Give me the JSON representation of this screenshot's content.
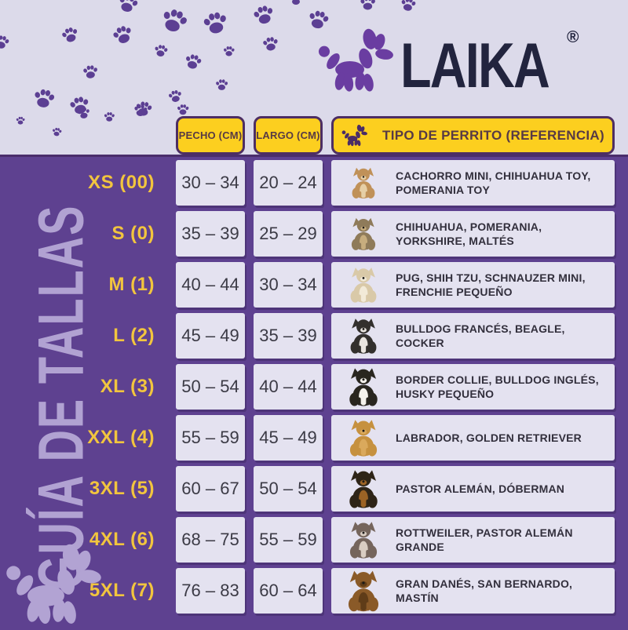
{
  "brand": {
    "name": "LAIKA",
    "registered": "®"
  },
  "sidebar": {
    "title": "GUÍA DE TALLAS"
  },
  "colors": {
    "background": "#dcdaea",
    "panel_purple": "#5e4190",
    "paw_purple": "#5c3f93",
    "header_yellow": "#fccf1f",
    "label_yellow": "#f2c53e",
    "logo_navy": "#22243e",
    "cell_bg": "#e4e2f0"
  },
  "icons": {
    "logo": "balloon-dog-icon",
    "header": "balloon-dog-icon",
    "panel": "balloon-dog-icon",
    "background_pattern": "paw-print-icon"
  },
  "table": {
    "headers": {
      "chest": "PECHO (CM)",
      "length": "LARGO (CM)",
      "type": "TIPO DE PERRITO (REFERENCIA)"
    },
    "rows": [
      {
        "size": "XS (00)",
        "chest": "30 – 34",
        "length": "20 – 24",
        "breeds": "CACHORRO MINI, CHIHUAHUA TOY, POMERANIA TOY",
        "dog": "chihuahua-toy",
        "dog_colors": [
          "#c09158",
          "#e6cfa6"
        ],
        "dog_size": 44
      },
      {
        "size": "S (0)",
        "chest": "35 – 39",
        "length": "25 – 29",
        "breeds": "CHIHUAHUA, POMERANIA, YORKSHIRE, MALTÉS",
        "dog": "yorkshire",
        "dog_colors": [
          "#8f7b5a",
          "#c7ad7e"
        ],
        "dog_size": 46
      },
      {
        "size": "M (1)",
        "chest": "40 – 44",
        "length": "30 – 34",
        "breeds": "PUG, SHIH TZU, SCHNAUZER MINI, FRENCHIE PEQUEÑO",
        "dog": "shih-tzu",
        "dog_colors": [
          "#d9c9a8",
          "#f2ead8"
        ],
        "dog_size": 50
      },
      {
        "size": "L (2)",
        "chest": "45 – 49",
        "length": "35 – 39",
        "breeds": "BULLDOG FRANCÉS, BEAGLE, COCKER",
        "dog": "bulldog-frances",
        "dog_colors": [
          "#33302d",
          "#e9e5df"
        ],
        "dog_size": 50
      },
      {
        "size": "XL (3)",
        "chest": "50 – 54",
        "length": "40 – 44",
        "breeds": "BORDER COLLIE, BULLDOG INGLÉS, HUSKY PEQUEÑO",
        "dog": "border-collie",
        "dog_colors": [
          "#29261f",
          "#f4f2ec"
        ],
        "dog_size": 54
      },
      {
        "size": "XXL (4)",
        "chest": "55 – 59",
        "length": "45 – 49",
        "breeds": "LABRADOR, GOLDEN RETRIEVER",
        "dog": "golden-retriever",
        "dog_colors": [
          "#c6913f",
          "#daa95c"
        ],
        "dog_size": 52
      },
      {
        "size": "3XL (5)",
        "chest": "60 – 67",
        "length": "50 – 54",
        "breeds": "PASTOR ALEMÁN, DÓBERMAN",
        "dog": "doberman",
        "dog_colors": [
          "#2e2417",
          "#9c6325"
        ],
        "dog_size": 54
      },
      {
        "size": "4XL (6)",
        "chest": "68 – 75",
        "length": "55 – 59",
        "breeds": "ROTTWEILER, PASTOR ALEMÁN GRANDE",
        "dog": "rottweiler",
        "dog_colors": [
          "#75655c",
          "#d9cdc2"
        ],
        "dog_size": 52
      },
      {
        "size": "5XL (7)",
        "chest": "76 – 83",
        "length": "60 – 64",
        "breeds": "GRAN DANÉS, SAN BERNARDO, MASTÍN",
        "dog": "mastin",
        "dog_colors": [
          "#8a5a28",
          "#5f3c18"
        ],
        "dog_size": 58
      }
    ]
  }
}
